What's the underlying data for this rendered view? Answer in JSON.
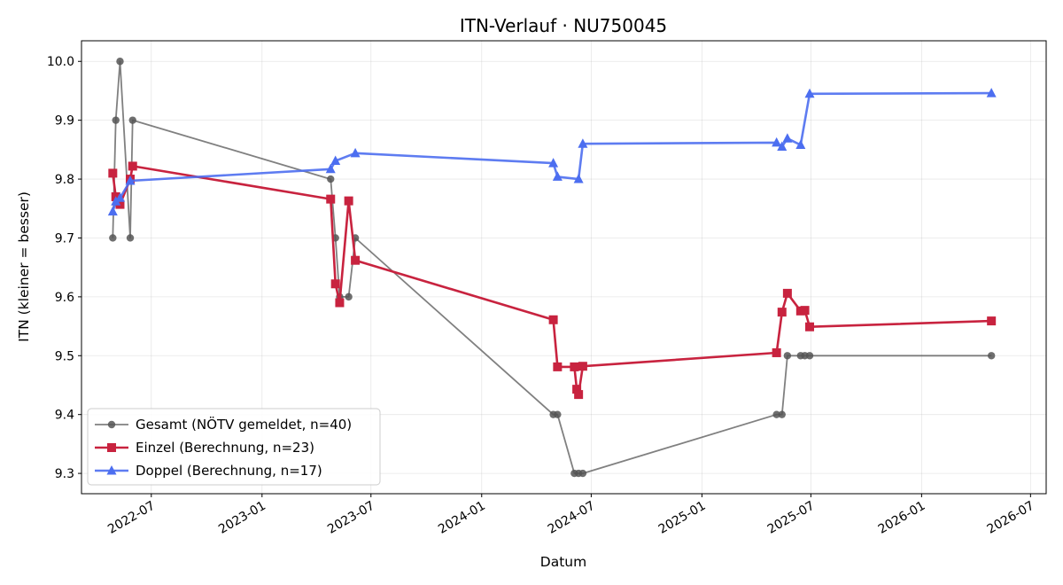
{
  "chart_data": {
    "type": "line",
    "title": "ITN-Verlauf · NU750045",
    "xlabel": "Datum",
    "ylabel": "ITN  (kleiner = besser)",
    "x_axis_type": "date",
    "xlim": [
      "2022-03-07",
      "2026-07-27"
    ],
    "ylim": [
      9.2655,
      10.035
    ],
    "grid": true,
    "legend_position": "lower-left",
    "x_ticks": [
      "2022-07",
      "2023-01",
      "2023-07",
      "2024-01",
      "2024-07",
      "2025-01",
      "2025-07",
      "2026-01",
      "2026-07"
    ],
    "x_tick_dates": [
      "2022-07-01",
      "2023-01-01",
      "2023-07-01",
      "2024-01-01",
      "2024-07-01",
      "2025-01-01",
      "2025-07-01",
      "2026-01-01",
      "2026-07-01"
    ],
    "y_ticks": [
      9.3,
      9.4,
      9.5,
      9.6,
      9.7,
      9.8,
      9.9,
      10.0
    ],
    "y_tick_labels": [
      "9.3",
      "9.4",
      "9.5",
      "9.6",
      "9.7",
      "9.8",
      "9.9",
      "10.0"
    ],
    "series": [
      {
        "name": "Gesamt (NÖTV gemeldet, n=40)",
        "color": "#555555",
        "marker": "circle",
        "points": [
          {
            "x": "2022-04-28",
            "y": 9.7
          },
          {
            "x": "2022-05-03",
            "y": 9.9
          },
          {
            "x": "2022-05-10",
            "y": 10.0
          },
          {
            "x": "2022-05-27",
            "y": 9.7
          },
          {
            "x": "2022-05-31",
            "y": 9.9
          },
          {
            "x": "2023-04-25",
            "y": 9.8
          },
          {
            "x": "2023-05-03",
            "y": 9.7
          },
          {
            "x": "2023-05-10",
            "y": 9.6
          },
          {
            "x": "2023-05-25",
            "y": 9.6
          },
          {
            "x": "2023-06-05",
            "y": 9.7
          },
          {
            "x": "2024-04-29",
            "y": 9.4
          },
          {
            "x": "2024-05-06",
            "y": 9.4
          },
          {
            "x": "2024-06-03",
            "y": 9.3
          },
          {
            "x": "2024-06-10",
            "y": 9.3
          },
          {
            "x": "2024-06-17",
            "y": 9.3
          },
          {
            "x": "2025-05-05",
            "y": 9.4
          },
          {
            "x": "2025-05-14",
            "y": 9.4
          },
          {
            "x": "2025-05-23",
            "y": 9.5
          },
          {
            "x": "2025-06-14",
            "y": 9.5
          },
          {
            "x": "2025-06-21",
            "y": 9.5
          },
          {
            "x": "2025-06-29",
            "y": 9.5
          },
          {
            "x": "2026-04-27",
            "y": 9.5
          }
        ]
      },
      {
        "name": "Einzel (Berechnung, n=23)",
        "color": "#c8233f",
        "marker": "square",
        "points": [
          {
            "x": "2022-04-28",
            "y": 9.81
          },
          {
            "x": "2022-05-03",
            "y": 9.77
          },
          {
            "x": "2022-05-10",
            "y": 9.757
          },
          {
            "x": "2022-05-27",
            "y": 9.8
          },
          {
            "x": "2022-05-31",
            "y": 9.822
          },
          {
            "x": "2023-04-25",
            "y": 9.766
          },
          {
            "x": "2023-05-03",
            "y": 9.622
          },
          {
            "x": "2023-05-10",
            "y": 9.59
          },
          {
            "x": "2023-05-25",
            "y": 9.763
          },
          {
            "x": "2023-06-05",
            "y": 9.662
          },
          {
            "x": "2024-04-29",
            "y": 9.561
          },
          {
            "x": "2024-05-06",
            "y": 9.481
          },
          {
            "x": "2024-06-03",
            "y": 9.481
          },
          {
            "x": "2024-06-07",
            "y": 9.443
          },
          {
            "x": "2024-06-10",
            "y": 9.434
          },
          {
            "x": "2024-06-17",
            "y": 9.482
          },
          {
            "x": "2025-05-05",
            "y": 9.505
          },
          {
            "x": "2025-05-14",
            "y": 9.574
          },
          {
            "x": "2025-05-23",
            "y": 9.606
          },
          {
            "x": "2025-06-14",
            "y": 9.576
          },
          {
            "x": "2025-06-21",
            "y": 9.577
          },
          {
            "x": "2025-06-29",
            "y": 9.549
          },
          {
            "x": "2026-04-27",
            "y": 9.559
          }
        ]
      },
      {
        "name": "Doppel (Berechnung, n=17)",
        "color": "#4c6ef0",
        "marker": "triangle",
        "points": [
          {
            "x": "2022-04-28",
            "y": 9.745
          },
          {
            "x": "2022-05-03",
            "y": 9.762
          },
          {
            "x": "2022-05-10",
            "y": 9.768
          },
          {
            "x": "2022-05-27",
            "y": 9.797
          },
          {
            "x": "2023-04-25",
            "y": 9.817
          },
          {
            "x": "2023-05-03",
            "y": 9.831
          },
          {
            "x": "2023-06-05",
            "y": 9.844
          },
          {
            "x": "2024-04-29",
            "y": 9.827
          },
          {
            "x": "2024-05-06",
            "y": 9.804
          },
          {
            "x": "2024-06-10",
            "y": 9.8
          },
          {
            "x": "2024-06-17",
            "y": 9.86
          },
          {
            "x": "2025-05-05",
            "y": 9.862
          },
          {
            "x": "2025-05-14",
            "y": 9.855
          },
          {
            "x": "2025-05-23",
            "y": 9.869
          },
          {
            "x": "2025-06-14",
            "y": 9.858
          },
          {
            "x": "2025-06-29",
            "y": 9.945
          },
          {
            "x": "2026-04-27",
            "y": 9.946
          }
        ]
      }
    ]
  }
}
